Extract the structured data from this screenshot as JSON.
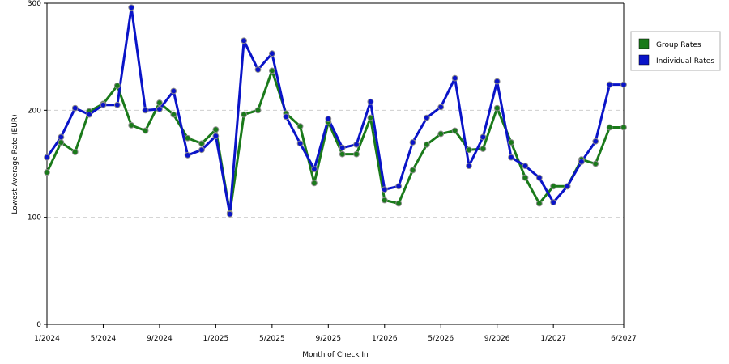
{
  "chart_data": {
    "type": "line",
    "title": "",
    "xlabel": "Month of Check In",
    "ylabel": "Lowest Average Rate (EUR)",
    "ylim": [
      0,
      300
    ],
    "yticks": [
      0,
      100,
      200,
      300
    ],
    "grid": true,
    "legend_position": "right",
    "x_tick_labels": [
      "1/2024",
      "5/2024",
      "9/2024",
      "1/2025",
      "5/2025",
      "9/2025",
      "1/2026",
      "5/2026",
      "9/2026",
      "1/2027",
      "6/2027"
    ],
    "x_tick_months": [
      0,
      4,
      8,
      12,
      16,
      20,
      24,
      28,
      32,
      36,
      41
    ],
    "x_months": [
      0,
      1,
      2,
      3,
      4,
      5,
      6,
      7,
      8,
      9,
      10,
      11,
      12,
      13,
      14,
      15,
      16,
      17,
      18,
      19,
      20,
      21,
      22,
      23,
      24,
      25,
      26,
      27,
      28,
      29,
      30,
      31,
      32,
      33,
      34,
      35,
      36,
      37,
      38,
      39,
      40,
      41
    ],
    "series": [
      {
        "name": "Group Rates",
        "color": "#1a7a1a",
        "values": [
          142,
          170,
          161,
          199,
          206,
          223,
          186,
          181,
          207,
          196,
          174,
          169,
          182,
          104,
          196,
          200,
          237,
          197,
          185,
          132,
          189,
          159,
          159,
          193,
          116,
          113,
          144,
          168,
          178,
          181,
          163,
          164,
          202,
          170,
          137,
          113,
          129,
          129,
          154,
          150,
          184,
          184
        ]
      },
      {
        "name": "Individual Rates",
        "color": "#0a14c8",
        "values": [
          156,
          175,
          202,
          196,
          205,
          205,
          296,
          200,
          201,
          218,
          158,
          163,
          176,
          103,
          265,
          238,
          253,
          194,
          169,
          145,
          192,
          165,
          168,
          208,
          126,
          129,
          170,
          193,
          203,
          230,
          148,
          175,
          227,
          156,
          148,
          137,
          114,
          129,
          152,
          171,
          224,
          224
        ]
      }
    ]
  }
}
